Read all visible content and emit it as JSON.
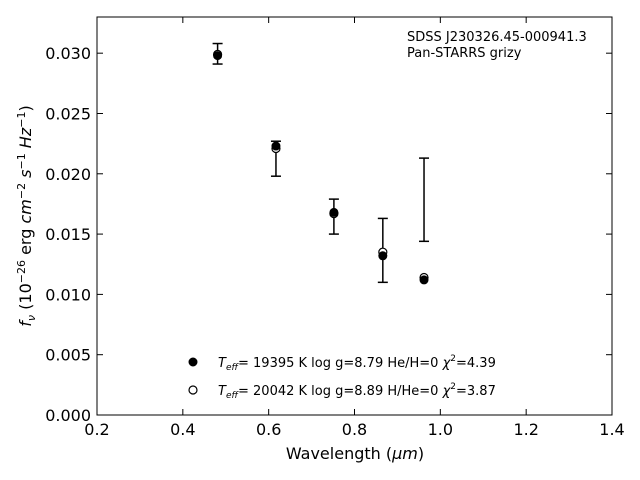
{
  "chart_data": {
    "type": "scatter",
    "title": "",
    "annotation": [
      "SDSS J230326.45-000941.3",
      "Pan-STARRS grizy"
    ],
    "xlabel": "Wavelength (μm)",
    "ylabel": "f_ν (10^-26 erg cm^-2 s^-1 Hz^-1)",
    "xlim": [
      0.2,
      1.4
    ],
    "ylim": [
      0.0,
      0.033
    ],
    "xticks": [
      0.2,
      0.4,
      0.6,
      0.8,
      1.0,
      1.2,
      1.4
    ],
    "xtick_labels": [
      "0.2",
      "0.4",
      "0.6",
      "0.8",
      "1.0",
      "1.2",
      "1.4"
    ],
    "yticks": [
      0.0,
      0.005,
      0.01,
      0.015,
      0.02,
      0.025,
      0.03
    ],
    "ytick_labels": [
      "0.000",
      "0.005",
      "0.010",
      "0.015",
      "0.020",
      "0.025",
      "0.030"
    ],
    "grid": false,
    "legend_position": "bottom-center",
    "observed": {
      "x": [
        0.481,
        0.617,
        0.752,
        0.866,
        0.962
      ],
      "y": [
        0.0299,
        0.0222,
        0.0167,
        0.0136,
        0.0178
      ],
      "yerr_low": [
        0.0008,
        0.0024,
        0.0017,
        0.0026,
        0.0034
      ],
      "yerr_high": [
        0.0009,
        0.0005,
        0.0012,
        0.0027,
        0.0035
      ]
    },
    "series": [
      {
        "name": "T_eff= 19395 K  log g=8.79  He/H=0  χ²=4.39",
        "marker": "filled-circle",
        "x": [
          0.481,
          0.617,
          0.752,
          0.866,
          0.962
        ],
        "y": [
          0.0298,
          0.0223,
          0.0168,
          0.0132,
          0.0112
        ]
      },
      {
        "name": "T_eff= 20042 K  log g=8.89  H/He=0  χ²=3.87",
        "marker": "open-circle",
        "x": [
          0.481,
          0.617,
          0.752,
          0.866,
          0.962
        ],
        "y": [
          0.0299,
          0.0221,
          0.0167,
          0.0135,
          0.0114
        ]
      }
    ],
    "colors": {
      "marker": "#000000",
      "errorbar": "#000000"
    }
  }
}
